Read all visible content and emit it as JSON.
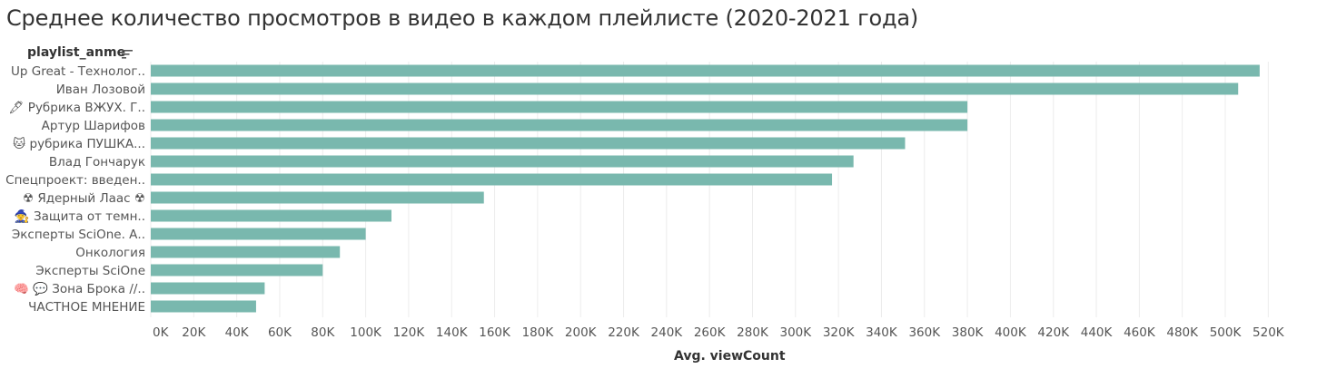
{
  "title": "Среднее количество просмотров в видео в каждом плейлисте (2020-2021 года)",
  "field_header": "playlist_anme",
  "sort_icon": "sort-descending-icon",
  "colors": {
    "bar": "#79b8ae",
    "grid": "#ececec",
    "text": "#555555"
  },
  "chart_data": {
    "type": "bar",
    "orientation": "horizontal",
    "categories": [
      "Up Great - Технолог..",
      "Иван Лозовой",
      "🖋 Рубрика ВЖУХ. Г..",
      "Артур Шарифов",
      "🐱 рубрика ПУШКА...",
      "Влад Гончарук",
      "Спецпроект: введен..",
      "☢ Ядерный Лаас ☢",
      "🧙 Защита от темн..",
      "Эксперты SciOne. А..",
      "Онкология",
      "Эксперты SciOne",
      "🧠 💬 Зона Брока //..",
      "ЧАСТНОЕ МНЕНИЕ"
    ],
    "values": [
      516000,
      506000,
      380000,
      380000,
      351000,
      327000,
      317000,
      155000,
      112000,
      100000,
      88000,
      80000,
      53000,
      49000
    ],
    "xlabel": "Avg. viewCount",
    "xlim": [
      0,
      530000
    ],
    "xticks": [
      0,
      20000,
      40000,
      60000,
      80000,
      100000,
      120000,
      140000,
      160000,
      180000,
      200000,
      220000,
      240000,
      260000,
      280000,
      300000,
      320000,
      340000,
      360000,
      380000,
      400000,
      420000,
      440000,
      460000,
      480000,
      500000,
      520000
    ],
    "xtick_labels": [
      "0K",
      "20K",
      "40K",
      "60K",
      "80K",
      "100K",
      "120K",
      "140K",
      "160K",
      "180K",
      "200K",
      "220K",
      "240K",
      "260K",
      "280K",
      "300K",
      "320K",
      "340K",
      "360K",
      "380K",
      "400K",
      "420K",
      "440K",
      "460K",
      "480K",
      "500K",
      "520K"
    ],
    "grid": true
  }
}
